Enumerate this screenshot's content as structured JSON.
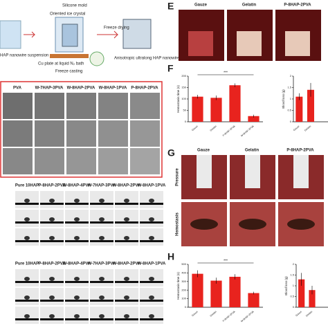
{
  "schematic": {
    "labels": [
      "HAP nanowire suspension",
      "Silicone mold",
      "Oriented ice crystal",
      "Freeze drying",
      "Cu plate at liquid N₂ bath",
      "Freeze casting",
      "Anisotropic ultralong HAP nanowire aerogel"
    ]
  },
  "sem": {
    "columns": [
      "PVA",
      "W-7HAP-3PVA",
      "W-8HAP-2PVA",
      "W-8HAP-1PVA",
      "P-8HAP-2PVA"
    ]
  },
  "contact_angle": {
    "headers_top": [
      "Pure 10HAP",
      "P-8HAP-2PVA",
      "W-8HAP-4PVA",
      "W-7HAP-3PVA",
      "W-8HAP-2PVA",
      "W-8HAP-1PVA"
    ],
    "headers_bottom": [
      "Pure 10HAP",
      "P-8HAP-2PVA",
      "W-8HAP-4PVA",
      "W-7HAP-3PVA",
      "W-8HAP-2PVA",
      "W-8HAP-1PVA"
    ]
  },
  "panel_e": {
    "letter": "E",
    "columns": [
      "Gauze",
      "Gelatin",
      "P-8HAP-2PVA"
    ]
  },
  "panel_f": {
    "letter": "F"
  },
  "panel_g": {
    "letter": "G",
    "columns": [
      "Gauze",
      "Gelatin",
      "P-8HAP-2PVA"
    ],
    "rows": [
      "Pressure",
      "Hemostasis"
    ]
  },
  "panel_h": {
    "letter": "H"
  },
  "chart_data": [
    {
      "type": "bar",
      "ylabel": "Hemostasis time (s)",
      "categories": [
        "Gauze",
        "Gelatin",
        "P-8HAP-2PVA",
        "W-8HAP-2PVA"
      ],
      "values": [
        110,
        105,
        160,
        25
      ],
      "errors": [
        8,
        10,
        8,
        6
      ],
      "color": "#e8231e",
      "ylim": [
        0,
        200
      ],
      "yticks": [
        0,
        50,
        100,
        150,
        200
      ],
      "annotation": "***"
    },
    {
      "type": "bar",
      "ylabel": "Blood loss (g)",
      "categories": [
        "Gauze",
        "Gelatin"
      ],
      "values": [
        1.1,
        1.4
      ],
      "errors": [
        0.15,
        0.3
      ],
      "color": "#e8231e",
      "ylim": [
        0,
        2
      ],
      "yticks": [
        0,
        0.5,
        1,
        1.5,
        2
      ]
    },
    {
      "type": "bar",
      "ylabel": "Hemostasis time (s)",
      "categories": [
        "Gauze",
        "Gelatin",
        "P-8HAP-2PVA",
        "W-8HAP-2PVA"
      ],
      "values": [
        390,
        310,
        355,
        165
      ],
      "errors": [
        40,
        35,
        30,
        15
      ],
      "color": "#e8231e",
      "ylim": [
        0,
        500
      ],
      "yticks": [
        0,
        100,
        200,
        300,
        400,
        500
      ],
      "annotation": "***"
    },
    {
      "type": "bar",
      "ylabel": "Blood loss (g)",
      "categories": [
        "Gauze",
        "Gelatin"
      ],
      "values": [
        1.3,
        0.8
      ],
      "errors": [
        0.3,
        0.2
      ],
      "color": "#e8231e",
      "ylim": [
        0,
        2
      ],
      "yticks": [
        0,
        0.5,
        1,
        1.5,
        2
      ]
    }
  ]
}
